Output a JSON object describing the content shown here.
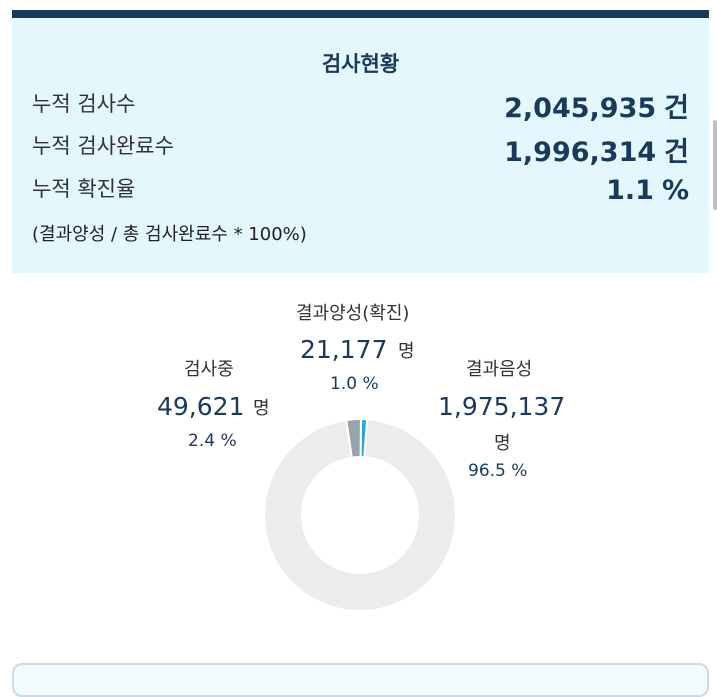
{
  "summary": {
    "title": "검사현황",
    "rows": [
      {
        "label": "누적 검사수",
        "value": "2,045,935",
        "unit": "건"
      },
      {
        "label": "누적 검사완료수",
        "value": "1,996,314",
        "unit": "건"
      },
      {
        "label": "누적 확진율",
        "value": "1.1",
        "unit": "%"
      }
    ],
    "formula": "(결과양성 / 총 검사완료수 * 100%)"
  },
  "colors": {
    "header_bar": "#1a3a5c",
    "summary_bg": "#e3f7fc",
    "positive": "#2aa8d6",
    "testing": "#97a4ab",
    "negative": "#ececec"
  },
  "chart_data": {
    "type": "pie",
    "donut": true,
    "unit": "명",
    "slices": [
      {
        "name": "결과양성(확진)",
        "value": 21177,
        "value_label": "21,177",
        "pct": 1.0,
        "pct_label": "1.0 %",
        "color": "#2aa8d6"
      },
      {
        "name": "결과음성",
        "value": 1975137,
        "value_label": "1,975,137",
        "pct": 96.5,
        "pct_label": "96.5 %",
        "color": "#ececec"
      },
      {
        "name": "검사중",
        "value": 49621,
        "value_label": "49,621",
        "pct": 2.4,
        "pct_label": "2.4 %",
        "color": "#97a4ab"
      }
    ]
  }
}
